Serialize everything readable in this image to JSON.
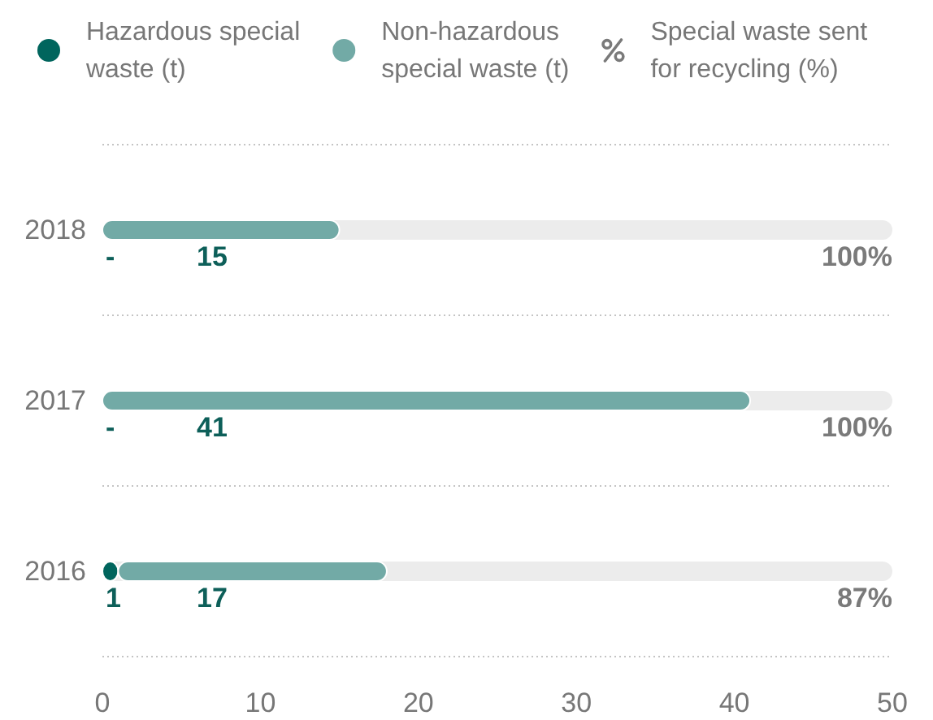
{
  "chart_data": {
    "type": "bar",
    "orientation": "horizontal",
    "stacked": true,
    "categories": [
      "2018",
      "2017",
      "2016"
    ],
    "series": [
      {
        "name": "Hazardous special waste (t)",
        "color": "#00655d",
        "values": [
          null,
          null,
          1
        ],
        "value_labels": [
          "-",
          "-",
          "1"
        ]
      },
      {
        "name": "Non-hazardous special waste (t)",
        "color": "#72aaa6",
        "values": [
          15,
          41,
          17
        ],
        "value_labels": [
          "15",
          "41",
          "17"
        ]
      }
    ],
    "annotations": [
      "Special waste sent for recycling (%)",
      "100%",
      "100%",
      "87%"
    ],
    "xlim": [
      0,
      50
    ],
    "xticks": [
      0,
      10,
      20,
      30,
      40,
      50
    ],
    "grid": "y",
    "legend": "top"
  }
}
